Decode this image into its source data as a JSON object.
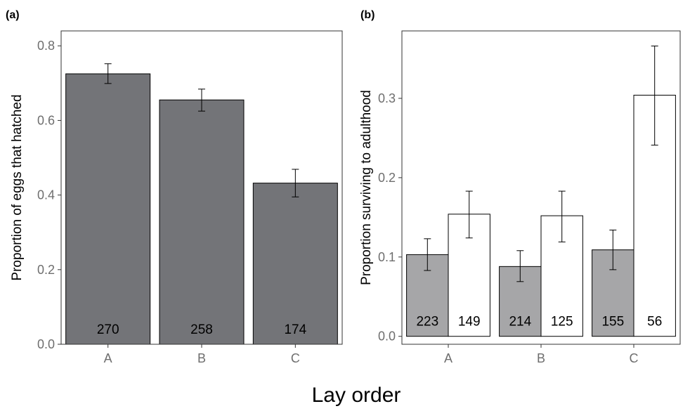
{
  "figure": {
    "xlabel": "Lay order"
  },
  "chart_data": [
    {
      "panel": "(a)",
      "type": "bar",
      "ylabel": "Proportion of eggs that hatched",
      "categories": [
        "A",
        "B",
        "C"
      ],
      "ylim": [
        0,
        0.84
      ],
      "yticks": [
        0.0,
        0.2,
        0.4,
        0.6,
        0.8
      ],
      "ytick_labels": [
        "0.0",
        "0.2",
        "0.4",
        "0.6",
        "0.8"
      ],
      "grid": false,
      "series": [
        {
          "color": "#737478",
          "values": [
            0.725,
            0.655,
            0.432
          ],
          "error_low": [
            0.699,
            0.625,
            0.395
          ],
          "error_high": [
            0.752,
            0.684,
            0.469
          ],
          "counts": [
            "270",
            "258",
            "174"
          ]
        }
      ]
    },
    {
      "panel": "(b)",
      "type": "bar",
      "ylabel": "Proportion surviving to adulthood",
      "categories": [
        "A",
        "B",
        "C"
      ],
      "ylim": [
        -0.01,
        0.385
      ],
      "yticks": [
        0.0,
        0.1,
        0.2,
        0.3
      ],
      "ytick_labels": [
        "0.0",
        "0.1",
        "0.2",
        "0.3"
      ],
      "grid": false,
      "series": [
        {
          "color": "#a6a6a8",
          "values": [
            0.103,
            0.088,
            0.109
          ],
          "error_low": [
            0.083,
            0.069,
            0.084
          ],
          "error_high": [
            0.123,
            0.108,
            0.134
          ],
          "counts": [
            "223",
            "214",
            "155"
          ]
        },
        {
          "color": "#ffffff",
          "values": [
            0.154,
            0.152,
            0.304
          ],
          "error_low": [
            0.124,
            0.119,
            0.241
          ],
          "error_high": [
            0.183,
            0.183,
            0.366
          ],
          "counts": [
            "149",
            "125",
            "56"
          ]
        }
      ]
    }
  ]
}
